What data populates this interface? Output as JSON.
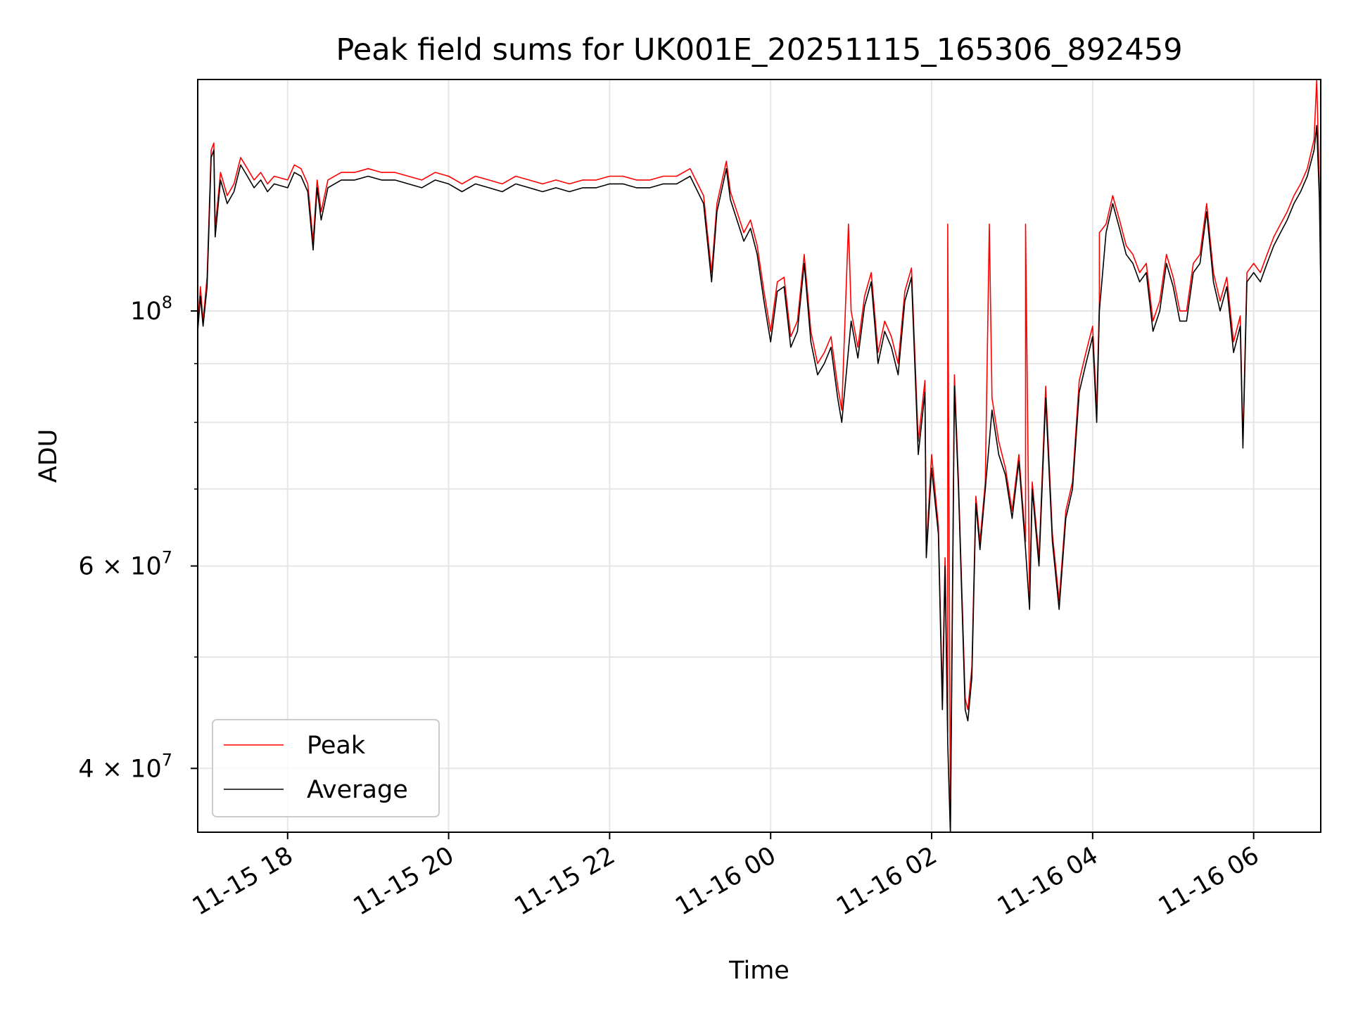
{
  "chart_data": {
    "type": "line",
    "title": "Peak field sums for UK001E_20251115_165306_892459",
    "xlabel": "Time",
    "ylabel": "ADU",
    "yscale": "log",
    "ylim": [
      35200000.0,
      159000000.0
    ],
    "xlim": [
      "2025-11-15T16:53",
      "2025-11-16T06:50"
    ],
    "grid": true,
    "legend_position": "lower-left",
    "x_ticks": [
      {
        "time": "2025-11-15T18:00",
        "label": "11-15 18"
      },
      {
        "time": "2025-11-15T20:00",
        "label": "11-15 20"
      },
      {
        "time": "2025-11-15T22:00",
        "label": "11-15 22"
      },
      {
        "time": "2025-11-16T00:00",
        "label": "11-16 00"
      },
      {
        "time": "2025-11-16T02:00",
        "label": "11-16 02"
      },
      {
        "time": "2025-11-16T04:00",
        "label": "11-16 04"
      },
      {
        "time": "2025-11-16T06:00",
        "label": "11-16 06"
      }
    ],
    "y_ticks": [
      {
        "value": 100000000.0,
        "base": "10",
        "exp": "8"
      },
      {
        "value": 60000000.0,
        "base": "6 × 10",
        "exp": "7"
      },
      {
        "value": 40000000.0,
        "base": "4 × 10",
        "exp": "7"
      }
    ],
    "y_minor_ticks": [
      50000000.0,
      70000000.0,
      80000000.0,
      90000000.0
    ],
    "legend": [
      {
        "name": "Peak",
        "color": "#ff0000"
      },
      {
        "name": "Average",
        "color": "#000000"
      }
    ],
    "time": [
      "2025-11-15T16:53",
      "2025-11-15T16:55",
      "2025-11-15T16:57",
      "2025-11-15T17:00",
      "2025-11-15T17:03",
      "2025-11-15T17:05",
      "2025-11-15T17:06",
      "2025-11-15T17:10",
      "2025-11-15T17:15",
      "2025-11-15T17:20",
      "2025-11-15T17:25",
      "2025-11-15T17:30",
      "2025-11-15T17:35",
      "2025-11-15T17:40",
      "2025-11-15T17:45",
      "2025-11-15T17:50",
      "2025-11-15T18:00",
      "2025-11-15T18:05",
      "2025-11-15T18:10",
      "2025-11-15T18:15",
      "2025-11-15T18:19",
      "2025-11-15T18:22",
      "2025-11-15T18:25",
      "2025-11-15T18:30",
      "2025-11-15T18:40",
      "2025-11-15T18:50",
      "2025-11-15T19:00",
      "2025-11-15T19:10",
      "2025-11-15T19:20",
      "2025-11-15T19:30",
      "2025-11-15T19:40",
      "2025-11-15T19:50",
      "2025-11-15T20:00",
      "2025-11-15T20:10",
      "2025-11-15T20:20",
      "2025-11-15T20:30",
      "2025-11-15T20:40",
      "2025-11-15T20:50",
      "2025-11-15T21:00",
      "2025-11-15T21:10",
      "2025-11-15T21:20",
      "2025-11-15T21:30",
      "2025-11-15T21:40",
      "2025-11-15T21:50",
      "2025-11-15T22:00",
      "2025-11-15T22:10",
      "2025-11-15T22:20",
      "2025-11-15T22:30",
      "2025-11-15T22:40",
      "2025-11-15T22:50",
      "2025-11-15T23:00",
      "2025-11-15T23:10",
      "2025-11-15T23:16",
      "2025-11-15T23:20",
      "2025-11-15T23:27",
      "2025-11-15T23:30",
      "2025-11-15T23:40",
      "2025-11-15T23:45",
      "2025-11-15T23:50",
      "2025-11-15T23:55",
      "2025-11-16T00:00",
      "2025-11-16T00:05",
      "2025-11-16T00:10",
      "2025-11-16T00:15",
      "2025-11-16T00:20",
      "2025-11-16T00:25",
      "2025-11-16T00:30",
      "2025-11-16T00:35",
      "2025-11-16T00:40",
      "2025-11-16T00:45",
      "2025-11-16T00:50",
      "2025-11-16T00:53",
      "2025-11-16T01:00",
      "2025-11-16T01:05",
      "2025-11-16T01:10",
      "2025-11-16T01:15",
      "2025-11-16T01:20",
      "2025-11-16T01:25",
      "2025-11-16T01:30",
      "2025-11-16T01:35",
      "2025-11-16T01:40",
      "2025-11-16T01:45",
      "2025-11-16T01:50",
      "2025-11-16T01:55",
      "2025-11-16T01:56",
      "2025-11-16T02:00",
      "2025-11-16T02:05",
      "2025-11-16T02:08",
      "2025-11-16T02:10",
      "2025-11-16T02:12",
      "2025-11-16T02:14",
      "2025-11-16T02:17",
      "2025-11-16T02:20",
      "2025-11-16T02:25",
      "2025-11-16T02:27",
      "2025-11-16T02:30",
      "2025-11-16T02:33",
      "2025-11-16T02:36",
      "2025-11-16T02:40",
      "2025-11-16T02:45",
      "2025-11-16T02:50",
      "2025-11-16T02:55",
      "2025-11-16T03:00",
      "2025-11-16T03:05",
      "2025-11-16T03:10",
      "2025-11-16T03:13",
      "2025-11-16T03:15",
      "2025-11-16T03:20",
      "2025-11-16T03:25",
      "2025-11-16T03:30",
      "2025-11-16T03:35",
      "2025-11-16T03:40",
      "2025-11-16T03:45",
      "2025-11-16T03:50",
      "2025-11-16T03:55",
      "2025-11-16T04:00",
      "2025-11-16T04:03",
      "2025-11-16T04:05",
      "2025-11-16T04:10",
      "2025-11-16T04:15",
      "2025-11-16T04:20",
      "2025-11-16T04:25",
      "2025-11-16T04:30",
      "2025-11-16T04:35",
      "2025-11-16T04:40",
      "2025-11-16T04:45",
      "2025-11-16T04:50",
      "2025-11-16T04:55",
      "2025-11-16T05:00",
      "2025-11-16T05:05",
      "2025-11-16T05:10",
      "2025-11-16T05:15",
      "2025-11-16T05:20",
      "2025-11-16T05:25",
      "2025-11-16T05:30",
      "2025-11-16T05:35",
      "2025-11-16T05:40",
      "2025-11-16T05:45",
      "2025-11-16T05:50",
      "2025-11-16T05:52",
      "2025-11-16T05:55",
      "2025-11-16T06:00",
      "2025-11-16T06:05",
      "2025-11-16T06:10",
      "2025-11-16T06:15",
      "2025-11-16T06:20",
      "2025-11-16T06:25",
      "2025-11-16T06:30",
      "2025-11-16T06:35",
      "2025-11-16T06:40",
      "2025-11-16T06:45",
      "2025-11-16T06:47",
      "2025-11-16T06:49",
      "2025-11-16T06:50"
    ],
    "series": [
      {
        "name": "Average",
        "color": "#000000",
        "values": [
          96000000.0,
          103000000.0,
          97000000.0,
          105000000.0,
          136000000.0,
          138000000.0,
          116000000.0,
          130000000.0,
          124000000.0,
          127000000.0,
          134000000.0,
          131000000.0,
          128000000.0,
          130000000.0,
          127000000.0,
          129000000.0,
          128000000.0,
          132000000.0,
          131000000.0,
          127000000.0,
          113000000.0,
          128000000.0,
          120000000.0,
          128000000.0,
          130000000.0,
          130000000.0,
          131000000.0,
          130000000.0,
          130000000.0,
          129000000.0,
          128000000.0,
          130000000.0,
          129000000.0,
          127000000.0,
          129000000.0,
          128000000.0,
          127000000.0,
          129000000.0,
          128000000.0,
          127000000.0,
          128000000.0,
          127000000.0,
          128000000.0,
          128000000.0,
          129000000.0,
          129000000.0,
          128000000.0,
          128000000.0,
          129000000.0,
          129000000.0,
          131000000.0,
          124000000.0,
          106000000.0,
          122000000.0,
          133000000.0,
          125000000.0,
          115000000.0,
          118000000.0,
          112000000.0,
          102000000.0,
          94000000.0,
          104000000.0,
          105000000.0,
          93000000.0,
          96000000.0,
          110000000.0,
          94000000.0,
          88000000.0,
          90000000.0,
          93000000.0,
          84000000.0,
          80000000.0,
          98000000.0,
          91000000.0,
          101000000.0,
          106000000.0,
          90000000.0,
          96000000.0,
          93000000.0,
          88000000.0,
          102000000.0,
          107000000.0,
          75000000.0,
          85000000.0,
          61000000.0,
          73000000.0,
          64000000.0,
          45000000.0,
          60000000.0,
          42000000.0,
          35000000.0,
          86000000.0,
          70000000.0,
          45000000.0,
          44000000.0,
          48000000.0,
          68000000.0,
          62000000.0,
          70000000.0,
          82000000.0,
          75000000.0,
          72000000.0,
          66000000.0,
          74000000.0,
          62000000.0,
          55000000.0,
          70000000.0,
          60000000.0,
          84000000.0,
          63000000.0,
          55000000.0,
          66000000.0,
          70000000.0,
          85000000.0,
          90000000.0,
          95000000.0,
          80000000.0,
          100000000.0,
          117000000.0,
          124000000.0,
          118000000.0,
          112000000.0,
          110000000.0,
          106000000.0,
          108000000.0,
          96000000.0,
          100000000.0,
          110000000.0,
          105000000.0,
          98000000.0,
          98000000.0,
          108000000.0,
          110000000.0,
          122000000.0,
          106000000.0,
          100000000.0,
          105000000.0,
          92000000.0,
          97000000.0,
          76000000.0,
          106000000.0,
          108000000.0,
          106000000.0,
          110000000.0,
          114000000.0,
          117000000.0,
          120000000.0,
          124000000.0,
          127000000.0,
          131000000.0,
          138000000.0,
          145000000.0,
          125000000.0,
          105000000.0
        ]
      },
      {
        "name": "Peak",
        "color": "#ff0000",
        "values": [
          97000000.0,
          105000000.0,
          98000000.0,
          107000000.0,
          138000000.0,
          140000000.0,
          118000000.0,
          132000000.0,
          126000000.0,
          129000000.0,
          136000000.0,
          133000000.0,
          130000000.0,
          132000000.0,
          129000000.0,
          131000000.0,
          130000000.0,
          134000000.0,
          133000000.0,
          129000000.0,
          115000000.0,
          130000000.0,
          122000000.0,
          130000000.0,
          132000000.0,
          132000000.0,
          133000000.0,
          132000000.0,
          132000000.0,
          131000000.0,
          130000000.0,
          132000000.0,
          131000000.0,
          129000000.0,
          131000000.0,
          130000000.0,
          129000000.0,
          131000000.0,
          130000000.0,
          129000000.0,
          130000000.0,
          129000000.0,
          130000000.0,
          130000000.0,
          131000000.0,
          131000000.0,
          130000000.0,
          130000000.0,
          131000000.0,
          131000000.0,
          133000000.0,
          126000000.0,
          108000000.0,
          124000000.0,
          135000000.0,
          127000000.0,
          117000000.0,
          120000000.0,
          114000000.0,
          104000000.0,
          96000000.0,
          106000000.0,
          107000000.0,
          95000000.0,
          98000000.0,
          112000000.0,
          96000000.0,
          90000000.0,
          92000000.0,
          95000000.0,
          86000000.0,
          82000000.0,
          100000000.0,
          93000000.0,
          103000000.0,
          108000000.0,
          92000000.0,
          98000000.0,
          95000000.0,
          90000000.0,
          104000000.0,
          109000000.0,
          77000000.0,
          87000000.0,
          62000000.0,
          75000000.0,
          65000000.0,
          46000000.0,
          61000000.0,
          43000000.0,
          36000000.0,
          88000000.0,
          71000000.0,
          46000000.0,
          45000000.0,
          49000000.0,
          69000000.0,
          63000000.0,
          71000000.0,
          84000000.0,
          77000000.0,
          73000000.0,
          67000000.0,
          75000000.0,
          63000000.0,
          56000000.0,
          71000000.0,
          61000000.0,
          86000000.0,
          64000000.0,
          56000000.0,
          67000000.0,
          71000000.0,
          87000000.0,
          92000000.0,
          97000000.0,
          82000000.0,
          102000000.0,
          119000000.0,
          126000000.0,
          120000000.0,
          114000000.0,
          112000000.0,
          108000000.0,
          110000000.0,
          98000000.0,
          102000000.0,
          112000000.0,
          107000000.0,
          100000000.0,
          100000000.0,
          110000000.0,
          112000000.0,
          124000000.0,
          108000000.0,
          102000000.0,
          107000000.0,
          94000000.0,
          99000000.0,
          77000000.0,
          108000000.0,
          110000000.0,
          108000000.0,
          112000000.0,
          116000000.0,
          119000000.0,
          122000000.0,
          126000000.0,
          129000000.0,
          133000000.0,
          141000000.0,
          159000000.0,
          128000000.0,
          107000000.0
        ]
      }
    ],
    "peak_spikes": [
      {
        "time": "2025-11-16T00:58",
        "value": 119000000.0
      },
      {
        "time": "2025-11-16T02:12",
        "value": 119000000.0
      },
      {
        "time": "2025-11-16T02:43",
        "value": 119000000.0
      },
      {
        "time": "2025-11-16T03:10",
        "value": 119000000.0
      },
      {
        "time": "2025-11-16T04:05",
        "value": 117000000.0
      }
    ]
  }
}
